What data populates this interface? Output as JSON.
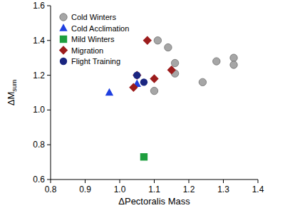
{
  "chart_data": {
    "type": "scatter",
    "xlabel": "ΔPectoralis Mass",
    "ylabel": "ΔMsum",
    "xlim": [
      0.8,
      1.4
    ],
    "xticks": [
      0.8,
      0.9,
      {
        "value": 1,
        "label": "1.0"
      },
      1.1,
      1.2,
      1.3,
      1.4
    ],
    "ylim": [
      0.6,
      1.6
    ],
    "yticks": [
      0.6,
      0.8,
      {
        "value": 1,
        "label": "1.0"
      },
      1.2,
      1.4,
      1.6
    ],
    "legend": "top-left",
    "grid": false,
    "series": [
      {
        "name": "Cold Winters",
        "color": "#a6a6a6",
        "marker": "circle",
        "x": [
          1.1,
          1.11,
          1.14,
          1.16,
          1.16,
          1.24,
          1.28,
          1.33,
          1.33
        ],
        "values": [
          1.11,
          1.4,
          1.36,
          1.27,
          1.21,
          1.16,
          1.28,
          1.3,
          1.26
        ]
      },
      {
        "name": "Cold Acclimation",
        "color": "#1f3fe0",
        "marker": "triangle",
        "x": [
          0.97,
          1.05
        ],
        "values": [
          1.1,
          1.15
        ]
      },
      {
        "name": "Mild Winters",
        "color": "#1e9e3e",
        "marker": "square",
        "x": [
          1.07
        ],
        "values": [
          0.73
        ]
      },
      {
        "name": "Migration",
        "color": "#9c1c1c",
        "marker": "diamond",
        "x": [
          1.08,
          1.05,
          1.04,
          1.1,
          1.15
        ],
        "values": [
          1.4,
          1.2,
          1.13,
          1.18,
          1.23
        ]
      },
      {
        "name": "Flight Training",
        "color": "#1a2580",
        "marker": "circle",
        "x": [
          1.05,
          1.07
        ],
        "values": [
          1.2,
          1.16
        ]
      }
    ]
  }
}
